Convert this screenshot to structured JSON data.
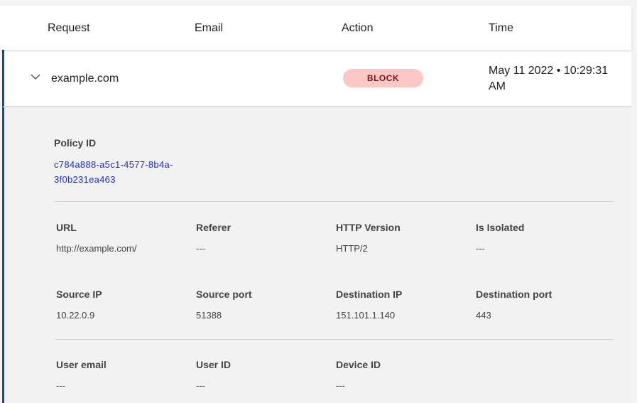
{
  "header": {
    "columns": [
      "Request",
      "Email",
      "Action",
      "Time"
    ]
  },
  "row": {
    "request": "example.com",
    "email": "",
    "action": "BLOCK",
    "time": "May 11 2022 • 10:29:31 AM",
    "accent": "#0a4ea8",
    "badge_bg": "#fcc8c6",
    "badge_fg": "#8a1010"
  },
  "detail": {
    "policy": {
      "label": "Policy ID",
      "value": "c784a888-a5c1-4577-8b4a-3f0b231ea463"
    },
    "fields": [
      {
        "label": "URL",
        "value": "http://example.com/"
      },
      {
        "label": "Referer",
        "value": "---"
      },
      {
        "label": "HTTP Version",
        "value": "HTTP/2"
      },
      {
        "label": "Is Isolated",
        "value": "---"
      },
      {
        "label": "Source IP",
        "value": "10.22.0.9"
      },
      {
        "label": "Source port",
        "value": "51388"
      },
      {
        "label": "Destination IP",
        "value": "151.101.1.140"
      },
      {
        "label": "Destination port",
        "value": "443"
      },
      {
        "label": "User email",
        "value": "---"
      },
      {
        "label": "User ID",
        "value": "---"
      },
      {
        "label": "Device ID",
        "value": "---"
      }
    ]
  }
}
